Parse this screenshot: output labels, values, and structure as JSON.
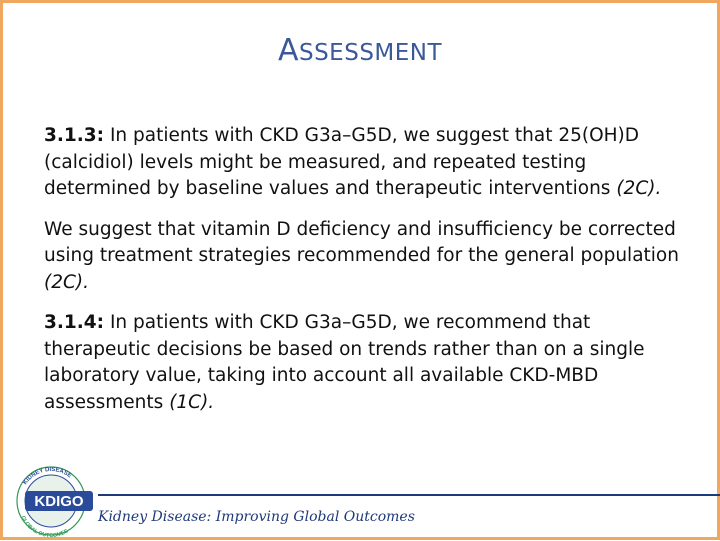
{
  "slide": {
    "title_first": "A",
    "title_rest": "SSESSMENT",
    "paragraphs": [
      {
        "lead": "3.1.3:",
        "text": " In patients with CKD G3a–G5D, we suggest that 25(OH)D (calcidiol) levels might be measured, and repeated testing determined by baseline values and therapeutic interventions ",
        "grade": "(2C)."
      },
      {
        "lead": "",
        "text": "We suggest that vitamin D deficiency and insufficiency be corrected using treatment strategies recommended for the general population ",
        "grade": "(2C)."
      },
      {
        "lead": "3.1.4:",
        "text": " In patients with CKD G3a–G5D, we recommend that therapeutic decisions be based on trends rather than on a single laboratory value, taking into account all available CKD-MBD assessments ",
        "grade": "(1C)."
      }
    ],
    "footer": "Kidney Disease: Improving Global Outcomes"
  },
  "logo": {
    "main_text": "KDIGO",
    "ring_top": "KIDNEY DISEASE",
    "ring_left": "IMPROVING",
    "ring_bottom": "GLOBAL OUTCOMES"
  },
  "colors": {
    "border": "#f0a860",
    "title": "#3b5998",
    "footer": "#1f3a7a",
    "logo_blue": "#2a4a9a",
    "logo_green": "#2f9a55"
  }
}
